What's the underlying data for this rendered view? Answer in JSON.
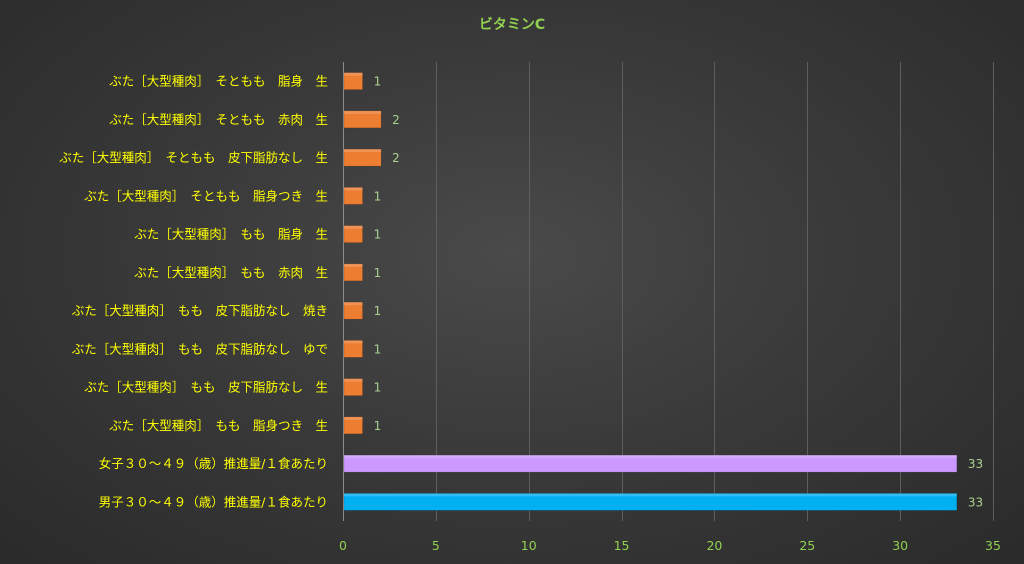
{
  "chart_data": {
    "type": "bar",
    "orientation": "horizontal",
    "title": "ビタミンC",
    "xlabel": "",
    "ylabel": "",
    "xlim": [
      0,
      35
    ],
    "xticks": [
      0,
      5,
      10,
      15,
      20,
      25,
      30,
      35
    ],
    "grid": true,
    "legend": "none",
    "categories": [
      "ぶた［大型種肉］　そともも　脂身　生",
      "ぶた［大型種肉］　そともも　赤肉　生",
      "ぶた［大型種肉］　そともも　皮下脂肪なし　生",
      "ぶた［大型種肉］　そともも　脂身つき　生",
      "ぶた［大型種肉］　もも　脂身　生",
      "ぶた［大型種肉］　もも　赤肉　生",
      "ぶた［大型種肉］　もも　皮下脂肪なし　焼き",
      "ぶた［大型種肉］　もも　皮下脂肪なし　ゆで",
      "ぶた［大型種肉］　もも　皮下脂肪なし　生",
      "ぶた［大型種肉］　もも　脂身つき　生",
      "女子３０～４９（歳）推進量/１食あたり",
      "男子３０～４９（歳）推進量/１食あたり"
    ],
    "values": [
      1,
      2,
      2,
      1,
      1,
      1,
      1,
      1,
      1,
      1,
      33,
      33
    ],
    "value_labels": [
      "1",
      "2",
      "2",
      "1",
      "1",
      "1",
      "1",
      "1",
      "1",
      "1",
      "33",
      "33"
    ],
    "colors": [
      "#ed7d31",
      "#ed7d31",
      "#ed7d31",
      "#ed7d31",
      "#ed7d31",
      "#ed7d31",
      "#ed7d31",
      "#ed7d31",
      "#ed7d31",
      "#ed7d31",
      "#cc99ff",
      "#00b0f0"
    ]
  }
}
